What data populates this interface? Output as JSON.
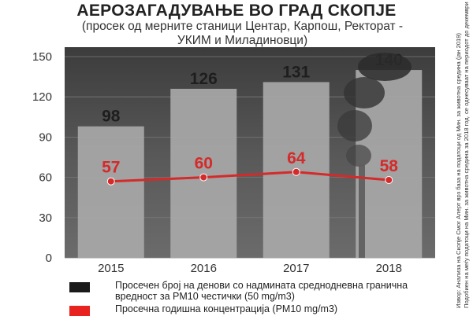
{
  "header": {
    "title": "АЕРОЗАГАДУВАЊЕ ВО ГРАД СКОПЈЕ",
    "subtitle": "(просек од мерните станици Центар, Карпош, Ректорат - УКИМ и Миладиновци)"
  },
  "side_note": {
    "line1": "Извор: Анализа на Скопје Смог Алерт врз база на податоци од Мин. за животна средина (јан 2019)",
    "line2": "Подобиен на меѓу податоци на Мин. за животна средина за 2018 год. се однесуваат на периодот до декември"
  },
  "legend": {
    "items": [
      {
        "label": "Просечен број на денови со надмината средноднев­на гранична вредност за PM10 честички (50 mg/m3)",
        "color": "#1a1a1a"
      },
      {
        "label": "Просечна годишна концентрација (PM10 mg/m3)",
        "color": "#e8231f"
      }
    ]
  },
  "colors": {
    "bar": "#a8a8a8",
    "line": "#d42a2a",
    "bar_label": "#1e1e1e",
    "line_label": "#d42a2a",
    "plot_bg": "#4a4a4a"
  },
  "chart_data": {
    "type": "bar",
    "categories": [
      "2015",
      "2016",
      "2017",
      "2018"
    ],
    "series": [
      {
        "name": "Просечен број на денови со надмината средноднев­на гранична вредност за PM10 честички (50 mg/m3)",
        "type": "bar",
        "values": [
          98,
          126,
          131,
          140
        ]
      },
      {
        "name": "Просечна годишна концентрација (PM10 mg/m3)",
        "type": "line",
        "values": [
          57,
          60,
          64,
          58
        ]
      }
    ],
    "yticks": [
      "0",
      "30",
      "60",
      "90",
      "120",
      "150"
    ],
    "ylim": [
      0,
      150
    ],
    "grid": true,
    "legend_position": "bottom"
  }
}
